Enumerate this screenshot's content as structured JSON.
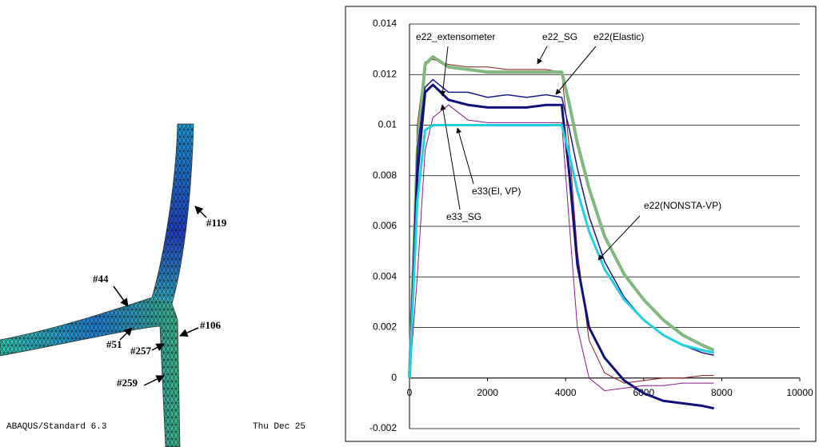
{
  "mesh": {
    "labels": [
      "#119",
      "#44",
      "#106",
      "#51",
      "#257",
      "#259"
    ],
    "footer": [
      "ABAQUS/Standard 6.3",
      "Thu Dec 25"
    ]
  },
  "chart_data": {
    "type": "line",
    "x": [
      0,
      200,
      400,
      600,
      1000,
      1500,
      2000,
      2500,
      3000,
      3500,
      3900,
      4100,
      4300,
      4600,
      5000,
      5500,
      6000,
      6500,
      7000,
      7500,
      7800
    ],
    "series": [
      {
        "color": "#8b1a1a",
        "line_width": 1,
        "values": [
          0,
          0.01,
          0.0125,
          0.0126,
          0.0124,
          0.0123,
          0.0123,
          0.0122,
          0.0122,
          0.0122,
          0.0121,
          0.009,
          0.005,
          0.0015,
          0.0002,
          -0.0002,
          -0.0001,
          0,
          0,
          0.0001,
          0.0001
        ]
      },
      {
        "color": "#80b880",
        "line_width": 4,
        "values": [
          0,
          0.009,
          0.0124,
          0.0127,
          0.0123,
          0.0122,
          0.0121,
          0.0121,
          0.0121,
          0.0121,
          0.0121,
          0.0108,
          0.0093,
          0.0075,
          0.0056,
          0.0041,
          0.0031,
          0.0023,
          0.0017,
          0.0013,
          0.0011
        ]
      },
      {
        "color": "#1c1c8c",
        "line_width": 1.5,
        "values": [
          0,
          0.009,
          0.0115,
          0.0118,
          0.0113,
          0.0113,
          0.0111,
          0.0112,
          0.0111,
          0.0112,
          0.0111,
          0.0098,
          0.0083,
          0.0064,
          0.0046,
          0.0032,
          0.0023,
          0.0017,
          0.0013,
          0.001,
          0.0009
        ]
      },
      {
        "color": "#10107a",
        "line_width": 3,
        "values": [
          0,
          0.008,
          0.0113,
          0.0116,
          0.011,
          0.0108,
          0.0107,
          0.0107,
          0.0107,
          0.0108,
          0.0108,
          0.008,
          0.0045,
          0.002,
          0.0008,
          -0.0001,
          -0.0006,
          -0.0009,
          -0.001,
          -0.0011,
          -0.0012
        ]
      },
      {
        "color": "#8a1a8a",
        "line_width": 1,
        "values": [
          0,
          0.004,
          0.009,
          0.0103,
          0.0108,
          0.0102,
          0.0101,
          0.0101,
          0.0101,
          0.0101,
          0.0101,
          0.006,
          0.002,
          0,
          -0.0005,
          -0.0004,
          -0.0003,
          -0.0003,
          -0.0002,
          -0.0002,
          -0.0002
        ]
      },
      {
        "color": "#22d0e0",
        "line_width": 3,
        "values": [
          0,
          0.007,
          0.0098,
          0.01,
          0.01,
          0.01,
          0.01,
          0.01,
          0.01,
          0.01,
          0.01,
          0.0088,
          0.0074,
          0.0058,
          0.0043,
          0.0031,
          0.0023,
          0.0017,
          0.0013,
          0.0011,
          0.001
        ]
      }
    ],
    "annotations": [
      "e22_extensometer",
      "e22_SG",
      "e22(Elastic)",
      "e33(El, VP)",
      "e33_SG",
      "e22(NONSTA-VP)"
    ],
    "xlim": [
      0,
      10000
    ],
    "xticks": [
      0,
      2000,
      4000,
      6000,
      8000,
      10000
    ],
    "ylim": [
      -0.002,
      0.014
    ],
    "yticks": [
      -0.002,
      0,
      0.002,
      0.004,
      0.006,
      0.008,
      0.01,
      0.012,
      0.014
    ],
    "grid": true
  }
}
